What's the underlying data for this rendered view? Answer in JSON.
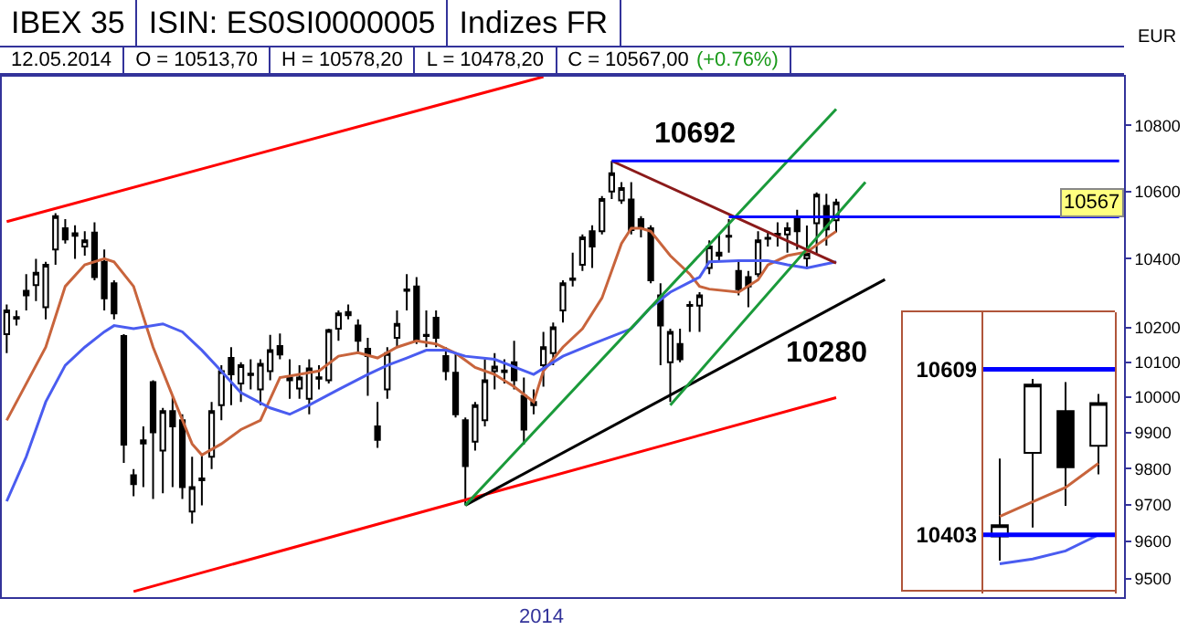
{
  "chart_data": [
    {
      "type": "candlestick",
      "title": "IBEX 35",
      "subtitle": "ISIN: ES0SI0000005",
      "ylabel": "EUR",
      "log": true,
      "annotations": [
        "Indizes FR",
        "12.05.2014",
        "O = 10513,70",
        "H = 10578,20",
        "L = 10478,20",
        "C = 10567,00",
        "(+0.76%)",
        "10692",
        "10280",
        "2014",
        {
          "text": "10567",
          "y": 10567
        }
      ],
      "ylim": [
        9450,
        10950
      ],
      "yticks": [
        9500,
        9600,
        9700,
        9800,
        9900,
        10000,
        10100,
        10200,
        10400,
        10600,
        10800
      ],
      "categories": [
        null,
        null,
        null,
        null,
        null,
        null,
        null,
        null,
        null,
        null,
        null,
        null,
        null,
        null,
        null,
        null,
        null,
        null,
        null,
        null,
        null,
        null,
        null,
        null,
        null,
        null,
        null,
        null,
        null,
        null,
        null,
        null,
        null,
        null,
        null,
        null,
        null,
        null,
        null,
        null,
        null,
        null,
        null,
        null,
        null,
        null,
        null,
        null,
        null,
        null,
        null,
        null,
        null,
        null,
        null,
        null,
        null,
        null,
        null,
        null,
        null,
        null,
        null,
        null,
        null,
        null,
        null,
        null,
        null,
        null,
        null,
        null,
        null,
        null,
        null,
        null,
        null,
        null,
        null,
        null,
        null,
        null,
        null,
        null,
        null,
        null,
        null,
        null,
        null,
        null,
        null,
        null,
        null,
        null,
        null,
        null,
        null,
        null,
        null,
        null,
        null,
        null,
        null,
        null,
        null,
        null,
        null,
        null,
        null,
        null,
        null,
        null,
        null,
        null,
        null
      ],
      "ohlc": [
        [
          10180,
          10266,
          10126,
          10249
        ],
        [
          10230,
          10249,
          10205,
          10225
        ],
        [
          10306,
          10355,
          10249,
          10293
        ],
        [
          10323,
          10400,
          10276,
          10359
        ],
        [
          10258,
          10391,
          10223,
          10382
        ],
        [
          10427,
          10535,
          10382,
          10526
        ],
        [
          10490,
          10517,
          10445,
          10457
        ],
        [
          10475,
          10499,
          10400,
          10468
        ],
        [
          10436,
          10481,
          10409,
          10454
        ],
        [
          10477,
          10508,
          10337,
          10346
        ],
        [
          10391,
          10427,
          10249,
          10284
        ],
        [
          10328,
          10337,
          10223,
          10240
        ],
        [
          10175,
          10180,
          9816,
          9867
        ],
        [
          9782,
          9799,
          9724,
          9757
        ],
        [
          9870,
          9918,
          9749,
          9879
        ],
        [
          10043,
          10048,
          9716,
          9901
        ],
        [
          9850,
          9970,
          9732,
          9961
        ],
        [
          9961,
          10004,
          9749,
          9918
        ],
        [
          9935,
          9952,
          9716,
          9749
        ],
        [
          9682,
          9833,
          9649,
          9749
        ],
        [
          9768,
          9842,
          9699,
          9773
        ],
        [
          9833,
          9987,
          9799,
          9961
        ],
        [
          9978,
          10091,
          9935,
          10074
        ],
        [
          10112,
          10143,
          9978,
          10065
        ],
        [
          10039,
          10100,
          9987,
          10091
        ],
        [
          10063,
          10108,
          10022,
          10067
        ],
        [
          10022,
          10108,
          9978,
          10095
        ],
        [
          10074,
          10178,
          10048,
          10134
        ],
        [
          10146,
          10182,
          10108,
          10122
        ],
        [
          10056,
          10108,
          9996,
          10048
        ],
        [
          10025,
          10091,
          9996,
          10056
        ],
        [
          9996,
          10108,
          9952,
          10082
        ],
        [
          10053,
          10091,
          10022,
          10057
        ],
        [
          10048,
          10196,
          10039,
          10192
        ],
        [
          10196,
          10249,
          10161,
          10240
        ],
        [
          10244,
          10266,
          10223,
          10235
        ],
        [
          10205,
          10223,
          10126,
          10161
        ],
        [
          10138,
          10170,
          10004,
          10117
        ],
        [
          9918,
          9987,
          9858,
          9880
        ],
        [
          10022,
          10143,
          9996,
          10126
        ],
        [
          10170,
          10249,
          10143,
          10210
        ],
        [
          10306,
          10355,
          10249,
          10310
        ],
        [
          10319,
          10346,
          10152,
          10161
        ],
        [
          10178,
          10249,
          10143,
          10175
        ],
        [
          10228,
          10249,
          10143,
          10170
        ],
        [
          10117,
          10143,
          10048,
          10074
        ],
        [
          10070,
          10126,
          9943,
          9952
        ],
        [
          9935,
          9943,
          9699,
          9807
        ],
        [
          9875,
          9987,
          9850,
          9978
        ],
        [
          9935,
          10108,
          9918,
          10048
        ],
        [
          10074,
          10126,
          10022,
          10087
        ],
        [
          10076,
          10108,
          10039,
          10072
        ],
        [
          10100,
          10161,
          10022,
          10048
        ],
        [
          10004,
          10056,
          9867,
          9909
        ],
        [
          9978,
          10022,
          9952,
          9987
        ],
        [
          10091,
          10187,
          10030,
          10143
        ],
        [
          10126,
          10214,
          10091,
          10200
        ],
        [
          10249,
          10337,
          10214,
          10328
        ],
        [
          10338,
          10418,
          10319,
          10342
        ],
        [
          10382,
          10472,
          10364,
          10463
        ],
        [
          10481,
          10499,
          10373,
          10436
        ],
        [
          10481,
          10586,
          10472,
          10577
        ],
        [
          10600,
          10692,
          10577,
          10655
        ],
        [
          10573,
          10628,
          10563,
          10610
        ],
        [
          10576,
          10628,
          10472,
          10485
        ],
        [
          10517,
          10526,
          10463,
          10490
        ],
        [
          10490,
          10499,
          10328,
          10337
        ],
        [
          10293,
          10328,
          10091,
          10205
        ],
        [
          10100,
          10196,
          9987,
          10187
        ],
        [
          10152,
          10196,
          10100,
          10108
        ],
        [
          10262,
          10276,
          10187,
          10265
        ],
        [
          10263,
          10302,
          10187,
          10293
        ],
        [
          10373,
          10454,
          10355,
          10436
        ],
        [
          10409,
          10472,
          10391,
          10418
        ],
        [
          10465,
          10517,
          10418,
          10468
        ],
        [
          10364,
          10391,
          10293,
          10311
        ],
        [
          10346,
          10364,
          10258,
          10319
        ],
        [
          10355,
          10481,
          10346,
          10454
        ],
        [
          10459,
          10481,
          10436,
          10462
        ],
        [
          10470,
          10508,
          10436,
          10474
        ],
        [
          10472,
          10508,
          10418,
          10490
        ],
        [
          10521,
          10545,
          10427,
          10481
        ],
        [
          10401,
          10498,
          10371,
          10415
        ],
        [
          10505,
          10597,
          10412,
          10590
        ],
        [
          10557,
          10593,
          10439,
          10487
        ],
        [
          10513.7,
          10578.2,
          10478.2,
          10567
        ],
        null,
        null,
        null,
        null,
        null,
        null,
        null,
        null,
        null,
        null,
        null,
        null,
        null,
        null,
        null,
        null,
        null,
        null,
        null,
        null,
        null,
        null,
        null,
        null,
        null,
        null,
        null,
        null,
        null
      ],
      "series": [
        {
          "type": "line",
          "color": "#c8643c",
          "values": [
            9935,
            null,
            null,
            null,
            10143,
            null,
            10319,
            null,
            10382,
            null,
            10400,
            10391,
            null,
            10319,
            null,
            10143,
            null,
            10004,
            null,
            9869,
            9838,
            null,
            9869,
            null,
            9909,
            null,
            9935,
            null,
            10056,
            null,
            10065,
            null,
            10075,
            null,
            10117,
            null,
            10127,
            null,
            10112,
            null,
            10143,
            null,
            10161,
            null,
            10152,
            null,
            10126,
            null,
            10085,
            null,
            10065,
            null,
            10030,
            null,
            9987,
            10075,
            null,
            10143,
            null,
            10196,
            null,
            10285,
            null,
            10445,
            10490,
            10490,
            10481,
            null,
            10409,
            null,
            10355,
            10319,
            10311,
            null,
            null,
            10302,
            null,
            10338,
            10382,
            null,
            10409,
            null,
            10420,
            null,
            null,
            10481,
            null,
            null,
            null,
            null,
            null,
            null,
            null,
            null,
            null,
            null,
            null,
            null,
            null,
            null,
            null,
            null,
            null,
            null,
            null,
            null,
            null,
            null,
            null,
            null,
            null,
            null,
            null,
            null,
            null
          ]
        },
        {
          "type": "line",
          "color": "#4a5cf0",
          "values": [
            9710,
            null,
            9833,
            null,
            9987,
            null,
            10091,
            null,
            10143,
            null,
            10187,
            10205,
            null,
            10196,
            null,
            null,
            10210,
            null,
            10187,
            null,
            10134,
            null,
            10074,
            null,
            10013,
            null,
            null,
            9970,
            null,
            9952,
            null,
            9978,
            null,
            null,
            10022,
            null,
            null,
            10065,
            null,
            10091,
            null,
            10112,
            null,
            10134,
            null,
            10134,
            null,
            10117,
            null,
            null,
            10108,
            null,
            null,
            null,
            10065,
            null,
            null,
            10117,
            null,
            null,
            10152,
            null,
            null,
            null,
            10196,
            null,
            10258,
            null,
            10302,
            null,
            null,
            10346,
            10391,
            null,
            null,
            10394,
            null,
            null,
            10394,
            null,
            10382,
            null,
            10373,
            null,
            null,
            10391,
            null,
            null,
            null,
            null,
            null,
            null,
            null,
            null,
            null,
            null,
            null,
            null,
            null,
            null,
            null,
            null,
            null,
            null,
            null,
            null,
            null,
            null,
            null,
            null,
            null,
            null,
            null,
            null,
            null
          ]
        },
        {
          "type": "line",
          "color": "#ff0000",
          "values": [
            10510,
            null,
            null,
            null,
            null,
            null,
            null,
            null,
            null,
            null,
            null,
            null,
            null,
            null,
            null,
            null,
            null,
            null,
            null,
            null,
            null,
            null,
            null,
            null,
            null,
            null,
            null,
            null,
            null,
            null,
            null,
            null,
            null,
            null,
            null,
            null,
            null,
            null,
            null,
            null,
            null,
            null,
            null,
            null,
            null,
            null,
            null,
            null,
            null,
            null,
            null,
            null,
            null,
            null,
            null,
            10950,
            null,
            null,
            null,
            null,
            null,
            null,
            null,
            null,
            null,
            null,
            null,
            null,
            null,
            null,
            null,
            null,
            null,
            null,
            null,
            null,
            null,
            null,
            null,
            null,
            null,
            null,
            null,
            null,
            null,
            null,
            null,
            null,
            null,
            null,
            null,
            null,
            null,
            null,
            null,
            null,
            null,
            null,
            null,
            null,
            null,
            null,
            null,
            null,
            null,
            null,
            null,
            null,
            null,
            null,
            null,
            null,
            null,
            null,
            null
          ]
        },
        {
          "type": "line",
          "color": "#ff0000",
          "values": [
            null,
            null,
            null,
            null,
            null,
            null,
            null,
            null,
            null,
            null,
            null,
            null,
            null,
            9465,
            null,
            null,
            null,
            null,
            null,
            null,
            null,
            null,
            null,
            null,
            null,
            null,
            null,
            null,
            null,
            null,
            null,
            null,
            null,
            null,
            null,
            null,
            null,
            null,
            null,
            null,
            null,
            null,
            null,
            null,
            null,
            null,
            null,
            null,
            null,
            null,
            null,
            null,
            null,
            null,
            null,
            null,
            null,
            null,
            null,
            null,
            null,
            null,
            null,
            null,
            null,
            null,
            null,
            null,
            null,
            null,
            null,
            null,
            null,
            null,
            null,
            null,
            null,
            null,
            null,
            null,
            null,
            null,
            null,
            null,
            null,
            9999,
            null,
            null,
            null,
            null,
            null,
            null,
            null,
            null,
            null,
            null,
            null,
            null,
            null,
            null,
            null,
            null,
            null,
            null,
            null,
            null,
            null,
            null,
            null,
            null,
            null,
            null,
            null,
            null,
            null
          ]
        },
        {
          "type": "line",
          "color": "#000000",
          "values": [
            null,
            null,
            null,
            null,
            null,
            null,
            null,
            null,
            null,
            null,
            null,
            null,
            null,
            null,
            null,
            null,
            null,
            null,
            null,
            null,
            null,
            null,
            null,
            null,
            null,
            null,
            null,
            null,
            null,
            null,
            null,
            null,
            null,
            null,
            null,
            null,
            null,
            null,
            null,
            null,
            null,
            null,
            null,
            null,
            null,
            null,
            null,
            9699,
            null,
            null,
            null,
            null,
            null,
            null,
            null,
            null,
            null,
            null,
            null,
            null,
            null,
            null,
            null,
            null,
            null,
            null,
            null,
            null,
            null,
            null,
            null,
            null,
            null,
            null,
            null,
            null,
            null,
            null,
            null,
            null,
            null,
            null,
            null,
            null,
            null,
            null,
            null,
            null,
            null,
            null,
            10339,
            null,
            null,
            null,
            null,
            null,
            null,
            null,
            null,
            null,
            null,
            null,
            null,
            null,
            null,
            null,
            null,
            null,
            null,
            null,
            null,
            null,
            null,
            null,
            null
          ]
        },
        {
          "type": "line",
          "color": "#1a9a3a",
          "values": [
            null,
            null,
            null,
            null,
            null,
            null,
            null,
            null,
            null,
            null,
            null,
            null,
            null,
            null,
            null,
            null,
            null,
            null,
            null,
            null,
            null,
            null,
            null,
            null,
            null,
            null,
            null,
            null,
            null,
            null,
            null,
            null,
            null,
            null,
            null,
            null,
            null,
            null,
            null,
            null,
            null,
            null,
            null,
            null,
            null,
            null,
            null,
            9699,
            null,
            null,
            null,
            null,
            null,
            null,
            null,
            null,
            null,
            null,
            null,
            null,
            null,
            null,
            null,
            null,
            null,
            null,
            null,
            null,
            null,
            null,
            null,
            null,
            null,
            null,
            null,
            null,
            null,
            null,
            null,
            null,
            null,
            null,
            null,
            null,
            null,
            10850,
            null,
            null,
            null,
            null,
            null,
            null,
            null,
            null,
            null,
            null,
            null,
            null,
            null,
            null,
            null,
            null,
            null,
            null,
            null,
            null,
            null,
            null,
            null,
            null,
            null,
            null,
            null,
            null,
            null
          ]
        },
        {
          "type": "line",
          "color": "#1a9a3a",
          "values": [
            null,
            null,
            null,
            null,
            null,
            null,
            null,
            null,
            null,
            null,
            null,
            null,
            null,
            null,
            null,
            null,
            null,
            null,
            null,
            null,
            null,
            null,
            null,
            null,
            null,
            null,
            null,
            null,
            null,
            null,
            null,
            null,
            null,
            null,
            null,
            null,
            null,
            null,
            null,
            null,
            null,
            null,
            null,
            null,
            null,
            null,
            null,
            null,
            null,
            null,
            null,
            null,
            null,
            null,
            null,
            null,
            null,
            null,
            null,
            null,
            null,
            null,
            null,
            null,
            null,
            null,
            null,
            null,
            9978,
            null,
            null,
            null,
            null,
            null,
            null,
            null,
            null,
            null,
            null,
            null,
            null,
            null,
            null,
            null,
            null,
            null,
            null,
            null,
            10628,
            null,
            null,
            null,
            null,
            null,
            null,
            null,
            null,
            null,
            null,
            null,
            null,
            null,
            null,
            null,
            null,
            null,
            null,
            null,
            null,
            null,
            null,
            null,
            null,
            null,
            null
          ]
        },
        {
          "type": "line",
          "color": "#8b1a1a",
          "values": [
            null,
            null,
            null,
            null,
            null,
            null,
            null,
            null,
            null,
            null,
            null,
            null,
            null,
            null,
            null,
            null,
            null,
            null,
            null,
            null,
            null,
            null,
            null,
            null,
            null,
            null,
            null,
            null,
            null,
            null,
            null,
            null,
            null,
            null,
            null,
            null,
            null,
            null,
            null,
            null,
            null,
            null,
            null,
            null,
            null,
            null,
            null,
            null,
            null,
            null,
            null,
            null,
            null,
            null,
            null,
            null,
            null,
            null,
            null,
            null,
            null,
            null,
            10692,
            null,
            null,
            null,
            null,
            null,
            null,
            null,
            null,
            null,
            null,
            null,
            null,
            null,
            null,
            null,
            null,
            null,
            null,
            null,
            null,
            null,
            null,
            10387,
            null,
            null,
            null,
            null,
            null,
            null,
            null,
            null,
            null,
            null,
            null,
            null,
            null,
            null,
            null,
            null,
            null,
            null,
            null,
            null,
            null,
            null,
            null,
            null,
            null,
            null,
            null,
            null,
            null
          ]
        },
        {
          "type": "line",
          "color": "#0000ff",
          "values": [
            null,
            null,
            null,
            null,
            null,
            null,
            null,
            null,
            null,
            null,
            null,
            null,
            null,
            null,
            null,
            null,
            null,
            null,
            null,
            null,
            null,
            null,
            null,
            null,
            null,
            null,
            null,
            null,
            null,
            null,
            null,
            null,
            null,
            null,
            null,
            null,
            null,
            null,
            null,
            null,
            null,
            null,
            null,
            null,
            null,
            null,
            null,
            null,
            null,
            null,
            null,
            null,
            null,
            null,
            null,
            null,
            null,
            null,
            null,
            null,
            null,
            null,
            10692,
            null,
            null,
            null,
            null,
            null,
            null,
            null,
            null,
            null,
            null,
            null,
            null,
            null,
            null,
            null,
            null,
            null,
            null,
            null,
            null,
            null,
            null,
            null,
            null,
            null,
            null,
            null,
            null,
            null,
            null,
            null,
            null,
            null,
            null,
            null,
            null,
            null,
            null,
            null,
            null,
            null,
            null,
            null,
            null,
            null,
            null,
            null,
            null,
            null,
            null,
            null,
            10692
          ]
        },
        {
          "type": "line",
          "color": "#0000ff",
          "values": [
            null,
            null,
            null,
            null,
            null,
            null,
            null,
            null,
            null,
            null,
            null,
            null,
            null,
            null,
            null,
            null,
            null,
            null,
            null,
            null,
            null,
            null,
            null,
            null,
            null,
            null,
            null,
            null,
            null,
            null,
            null,
            null,
            null,
            null,
            null,
            null,
            null,
            null,
            null,
            null,
            null,
            null,
            null,
            null,
            null,
            null,
            null,
            null,
            null,
            null,
            null,
            null,
            null,
            null,
            null,
            null,
            null,
            null,
            null,
            null,
            null,
            null,
            null,
            null,
            null,
            null,
            null,
            null,
            null,
            null,
            null,
            null,
            null,
            null,
            10524,
            null,
            null,
            null,
            null,
            null,
            null,
            null,
            null,
            null,
            null,
            null,
            null,
            null,
            null,
            null,
            null,
            null,
            null,
            null,
            null,
            null,
            null,
            null,
            null,
            null,
            null,
            null,
            null,
            null,
            null,
            null,
            null,
            null,
            null,
            null,
            null,
            null,
            null,
            null,
            10524
          ]
        }
      ]
    },
    {
      "type": "candlestick",
      "tick_labels": "y",
      "categories": [
        null,
        null,
        null,
        null
      ],
      "ylim": [
        10330,
        10680
      ],
      "yticks": [
        10403,
        10609
      ],
      "ohlc": [
        [
          10401,
          10498,
          10371,
          10415
        ],
        [
          10505,
          10597,
          10412,
          10590
        ],
        [
          10557,
          10593,
          10439,
          10487
        ],
        [
          10513.7,
          10578.2,
          10478.2,
          10567
        ]
      ],
      "series": [
        {
          "type": "line",
          "color": "#c8643c",
          "values": [
            10426,
            10444,
            10462,
            10492
          ]
        },
        {
          "type": "line",
          "color": "#4a5cf0",
          "values": [
            10367,
            10373,
            10383,
            10403
          ]
        }
      ],
      "ref_lines": [
        {
          "axis": "y",
          "value": 10609,
          "color": "#0000ff"
        },
        {
          "axis": "y",
          "value": 10403,
          "color": "#0000ff"
        }
      ]
    }
  ]
}
